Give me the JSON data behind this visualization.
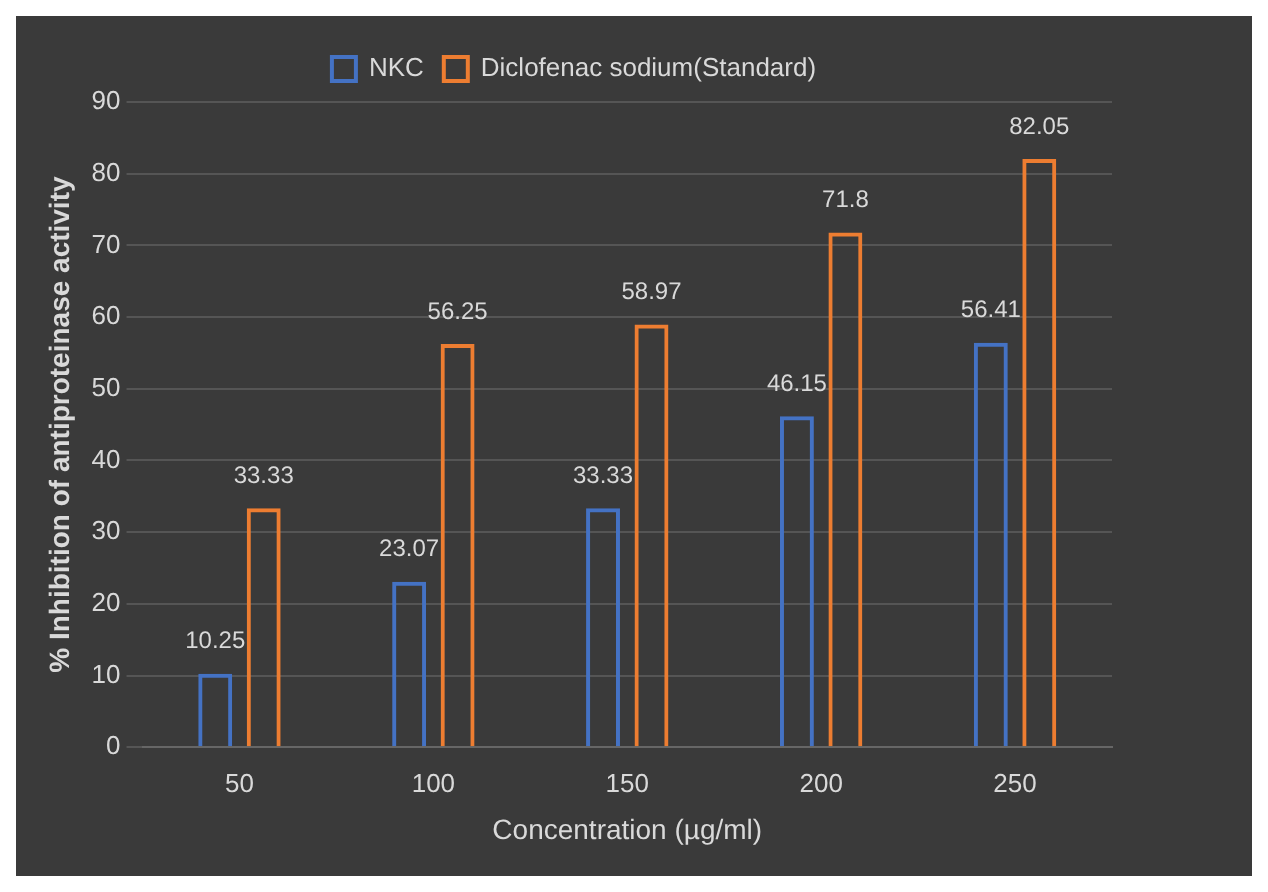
{
  "chart_data": {
    "type": "bar",
    "xlabel": "Concentration (µg/ml)",
    "ylabel": "% Inhibition of antiproteinase activity",
    "categories": [
      "50",
      "100",
      "150",
      "200",
      "250"
    ],
    "series": [
      {
        "name": "NKC",
        "color": "#4472c4",
        "values": [
          10.25,
          23.07,
          33.33,
          46.15,
          56.41
        ]
      },
      {
        "name": "Diclofenac sodium(Standard)",
        "color": "#ed7d31",
        "values": [
          33.33,
          56.25,
          58.97,
          71.8,
          82.05
        ]
      }
    ],
    "ylim": [
      0,
      90
    ],
    "yticks": [
      0,
      10,
      20,
      30,
      40,
      50,
      60,
      70,
      80,
      90
    ],
    "grid": "y",
    "legend": "top",
    "data_labels": true
  }
}
